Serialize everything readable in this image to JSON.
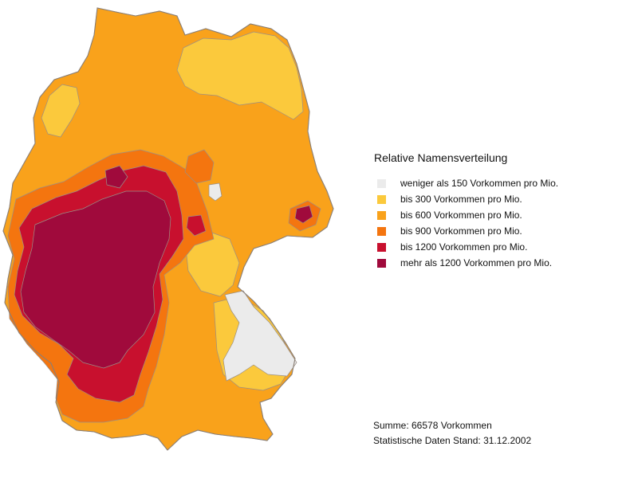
{
  "legend": {
    "title": "Relative Namensverteilung",
    "items": [
      {
        "label": "weniger als 150 Vorkommen pro Mio.",
        "color": "#ebebeb"
      },
      {
        "label": "bis 300 Vorkommen pro Mio.",
        "color": "#fbc93c"
      },
      {
        "label": "bis 600 Vorkommen pro Mio.",
        "color": "#f9a21b"
      },
      {
        "label": "bis 900 Vorkommen pro Mio.",
        "color": "#f4750f"
      },
      {
        "label": "bis 1200 Vorkommen pro Mio.",
        "color": "#c8102e"
      },
      {
        "label": "mehr als 1200 Vorkommen pro Mio.",
        "color": "#a00a3c"
      }
    ]
  },
  "footer": {
    "summary": "Summe: 66578 Vorkommen",
    "date_note": "Statistische Daten Stand: 31.12.2002"
  }
}
